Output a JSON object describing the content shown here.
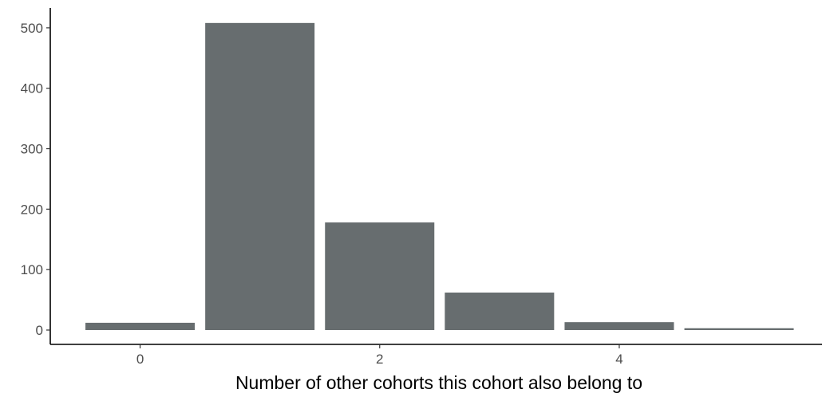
{
  "chart_data": {
    "type": "bar",
    "x": [
      0,
      1,
      2,
      3,
      4,
      5
    ],
    "values": [
      12,
      508,
      178,
      62,
      13,
      3
    ],
    "xlabel": "Number of other cohorts this cohort also belong to",
    "ylabel": "",
    "xlim": [
      -0.5,
      5.5
    ],
    "ylim": [
      0,
      508
    ],
    "x_ticks": [
      0,
      2,
      4
    ],
    "y_ticks": [
      0,
      100,
      200,
      300,
      400,
      500
    ],
    "bar_color": "#676d6f",
    "axis_color": "#000000",
    "grid": false
  }
}
